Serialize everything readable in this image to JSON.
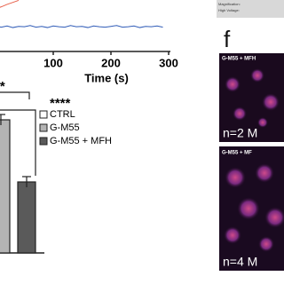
{
  "chart_data": [
    {
      "type": "line",
      "xlabel": "Time (s)",
      "x": [
        0,
        10,
        20,
        30,
        40,
        50,
        60,
        70,
        80,
        90,
        100,
        110,
        120,
        130,
        140,
        150,
        160,
        170,
        180,
        190,
        200,
        210,
        220,
        230,
        240,
        250,
        260,
        270,
        280,
        290
      ],
      "series": [
        {
          "color": "#e8604a",
          "values": [
            7.8,
            8.3,
            8.9,
            9.4,
            9.9,
            null,
            null,
            null,
            null,
            null,
            null,
            null,
            null,
            null,
            null,
            null,
            null,
            null,
            null,
            null,
            null,
            null,
            null,
            null,
            null,
            null,
            null,
            null,
            null,
            null
          ]
        },
        {
          "color": "#2f5bb7",
          "values": [
            3.4,
            3.2,
            3.5,
            3.1,
            3.4,
            3.3,
            3.6,
            3.2,
            3.4,
            3.1,
            3.5,
            3.3,
            3.2,
            3.6,
            3.3,
            3.4,
            3.1,
            3.5,
            3.3,
            3.2,
            3.4,
            3.6,
            3.2,
            3.3,
            3.5,
            3.1,
            3.4,
            3.3,
            3.5,
            3.2
          ]
        }
      ],
      "xlim": [
        0,
        300
      ],
      "ylim": [
        0,
        10
      ],
      "xticks": [
        100,
        200,
        300
      ]
    },
    {
      "type": "bar",
      "categories": [
        "CTRL",
        "G-M55",
        "G-M55 + MFH"
      ],
      "values": [
        null,
        75,
        40
      ],
      "errors": [
        null,
        3,
        3
      ],
      "colors": [
        "#ffffff",
        "#b4b4b4",
        "#5a5a5a"
      ],
      "ylim": [
        0,
        100
      ],
      "annotations": [
        "**",
        "****"
      ]
    }
  ],
  "panel_label": "f",
  "sem_info": [
    "Magnification:",
    "High Voltage:"
  ],
  "images": [
    {
      "title": "G-M55 + MFH",
      "label": "n=2 M"
    },
    {
      "title": "G-M55 + MF",
      "label": "n=4 M"
    }
  ]
}
